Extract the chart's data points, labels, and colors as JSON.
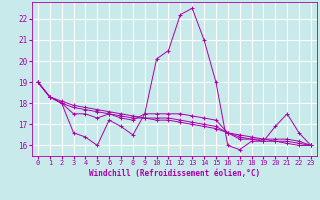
{
  "xlabel": "Windchill (Refroidissement éolien,°C)",
  "bg_color": "#c8eaea",
  "grid_color": "#ffffff",
  "line_color": "#aa00aa",
  "x": [
    0,
    1,
    2,
    3,
    4,
    5,
    6,
    7,
    8,
    9,
    10,
    11,
    12,
    13,
    14,
    15,
    16,
    17,
    18,
    19,
    20,
    21,
    22,
    23
  ],
  "series": [
    [
      19.0,
      18.3,
      18.0,
      16.6,
      16.4,
      16.0,
      17.2,
      16.9,
      16.5,
      17.5,
      20.1,
      20.5,
      22.2,
      22.5,
      21.0,
      19.0,
      16.0,
      15.8,
      16.2,
      16.2,
      16.9,
      17.5,
      16.6,
      16.0
    ],
    [
      19.0,
      18.3,
      18.0,
      17.5,
      17.5,
      17.3,
      17.5,
      17.3,
      17.2,
      17.5,
      17.5,
      17.5,
      17.5,
      17.4,
      17.3,
      17.2,
      16.6,
      16.3,
      16.3,
      16.3,
      16.3,
      16.3,
      16.2,
      16.0
    ],
    [
      19.0,
      18.3,
      18.0,
      17.8,
      17.7,
      17.6,
      17.5,
      17.4,
      17.3,
      17.3,
      17.3,
      17.3,
      17.2,
      17.1,
      17.0,
      16.9,
      16.6,
      16.4,
      16.3,
      16.2,
      16.2,
      16.2,
      16.1,
      16.0
    ],
    [
      19.0,
      18.3,
      18.1,
      17.9,
      17.8,
      17.7,
      17.6,
      17.5,
      17.4,
      17.3,
      17.2,
      17.2,
      17.1,
      17.0,
      16.9,
      16.8,
      16.6,
      16.5,
      16.4,
      16.3,
      16.2,
      16.1,
      16.0,
      16.0
    ]
  ],
  "ylim": [
    15.5,
    22.8
  ],
  "yticks": [
    16,
    17,
    18,
    19,
    20,
    21,
    22
  ],
  "xlim": [
    -0.5,
    23.5
  ],
  "xticks": [
    0,
    1,
    2,
    3,
    4,
    5,
    6,
    7,
    8,
    9,
    10,
    11,
    12,
    13,
    14,
    15,
    16,
    17,
    18,
    19,
    20,
    21,
    22,
    23
  ]
}
